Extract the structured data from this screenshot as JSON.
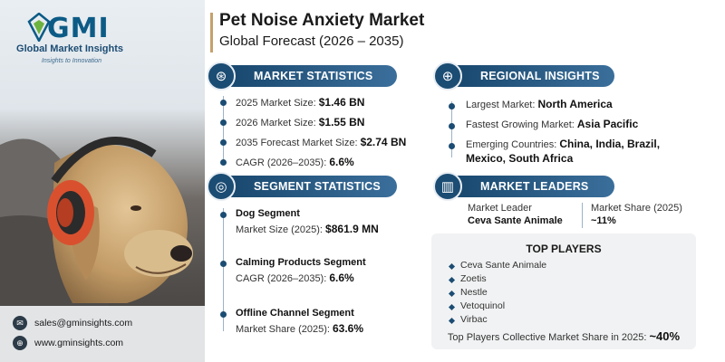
{
  "brand": {
    "name": "GMI",
    "full_name": "Global Market Insights",
    "tagline": "Insights to Innovation"
  },
  "header": {
    "title": "Pet Noise Anxiety Market",
    "subtitle": "Global Forecast (2026 – 2035)"
  },
  "contact": {
    "email": "sales@gminsights.com",
    "website": "www.gminsights.com"
  },
  "market_statistics": {
    "heading": "MARKET STATISTICS",
    "items": [
      {
        "label": "2025 Market Size:",
        "value": "$1.46 BN"
      },
      {
        "label": "2026 Market Size:",
        "value": "$1.55 BN"
      },
      {
        "label": "2035 Forecast Market Size:",
        "value": "$2.74 BN"
      },
      {
        "label": "CAGR (2026–2035):",
        "value": "6.6%"
      }
    ]
  },
  "segment_statistics": {
    "heading": "SEGMENT STATISTICS",
    "items": [
      {
        "name": "Dog Segment",
        "label": "Market Size (2025):",
        "value": "$861.9 MN"
      },
      {
        "name": "Calming Products Segment",
        "label": "CAGR (2026–2035):",
        "value": "6.6%"
      },
      {
        "name": "Offline Channel Segment",
        "label": "Market Share (2025):",
        "value": "63.6%"
      }
    ]
  },
  "regional_insights": {
    "heading": "REGIONAL INSIGHTS",
    "largest_label": "Largest Market:",
    "largest_value": "North America",
    "fastest_label": "Fastest Growing Market:",
    "fastest_value": "Asia Pacific",
    "emerging_label": "Emerging Countries:",
    "emerging_value_1": "China, India, Brazil,",
    "emerging_value_2": "Mexico, South Africa"
  },
  "market_leaders": {
    "heading": "MARKET LEADERS",
    "leader_label": "Market Leader",
    "leader_value": "Ceva Sante Animale",
    "share_label": "Market Share (2025)",
    "share_value": "~11%"
  },
  "top_players": {
    "heading": "TOP PLAYERS",
    "players": [
      "Ceva Sante Animale",
      "Zoetis",
      "Nestle",
      "Vetoquinol",
      "Virbac"
    ],
    "collective_label": "Top Players Collective Market Share in 2025:",
    "collective_value": "~40%"
  },
  "icons": {
    "globe": "globe-icon",
    "chart": "chart-icon",
    "target": "target-icon",
    "leader": "leaders-icon",
    "email": "email-icon",
    "web": "web-icon"
  },
  "colors": {
    "navy": "#16456b",
    "accent": "#c7a16b",
    "dog": "#c8a677",
    "headphones": "#d9502f"
  }
}
